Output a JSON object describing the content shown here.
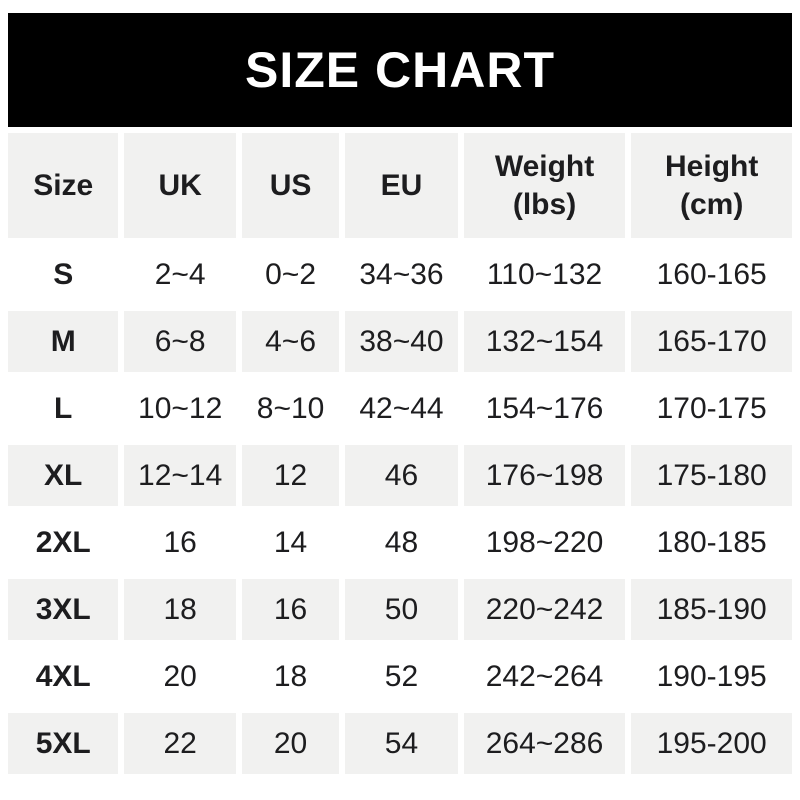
{
  "banner": {
    "title": "SIZE CHART"
  },
  "colors": {
    "banner_bg": "#000000",
    "banner_text": "#ffffff",
    "cell_alt_bg": "#f1f1f0",
    "cell_bg": "#ffffff",
    "text": "#1d1d1f"
  },
  "table": {
    "headers": [
      {
        "line1": "Size",
        "line2": ""
      },
      {
        "line1": "UK",
        "line2": ""
      },
      {
        "line1": "US",
        "line2": ""
      },
      {
        "line1": "EU",
        "line2": ""
      },
      {
        "line1": "Weight",
        "line2": "(lbs)"
      },
      {
        "line1": "Height",
        "line2": "(cm)"
      }
    ],
    "rows": [
      {
        "cells": [
          "S",
          "2~4",
          "0~2",
          "34~36",
          "110~132",
          "160-165"
        ]
      },
      {
        "cells": [
          "M",
          "6~8",
          "4~6",
          "38~40",
          "132~154",
          "165-170"
        ]
      },
      {
        "cells": [
          "L",
          "10~12",
          "8~10",
          "42~44",
          "154~176",
          "170-175"
        ]
      },
      {
        "cells": [
          "XL",
          "12~14",
          "12",
          "46",
          "176~198",
          "175-180"
        ]
      },
      {
        "cells": [
          "2XL",
          "16",
          "14",
          "48",
          "198~220",
          "180-185"
        ]
      },
      {
        "cells": [
          "3XL",
          "18",
          "16",
          "50",
          "220~242",
          "185-190"
        ]
      },
      {
        "cells": [
          "4XL",
          "20",
          "18",
          "52",
          "242~264",
          "190-195"
        ]
      },
      {
        "cells": [
          "5XL",
          "22",
          "20",
          "54",
          "264~286",
          "195-200"
        ]
      }
    ]
  },
  "chart_data": {
    "type": "table",
    "title": "SIZE CHART",
    "columns": [
      "Size",
      "UK",
      "US",
      "EU",
      "Weight (lbs)",
      "Height (cm)"
    ],
    "rows": [
      [
        "S",
        "2~4",
        "0~2",
        "34~36",
        "110~132",
        "160-165"
      ],
      [
        "M",
        "6~8",
        "4~6",
        "38~40",
        "132~154",
        "165-170"
      ],
      [
        "L",
        "10~12",
        "8~10",
        "42~44",
        "154~176",
        "170-175"
      ],
      [
        "XL",
        "12~14",
        "12",
        "46",
        "176~198",
        "175-180"
      ],
      [
        "2XL",
        "16",
        "14",
        "48",
        "198~220",
        "180-185"
      ],
      [
        "3XL",
        "18",
        "16",
        "50",
        "220~242",
        "185-190"
      ],
      [
        "4XL",
        "20",
        "18",
        "52",
        "242~264",
        "190-195"
      ],
      [
        "5XL",
        "22",
        "20",
        "54",
        "264~286",
        "195-200"
      ]
    ]
  }
}
